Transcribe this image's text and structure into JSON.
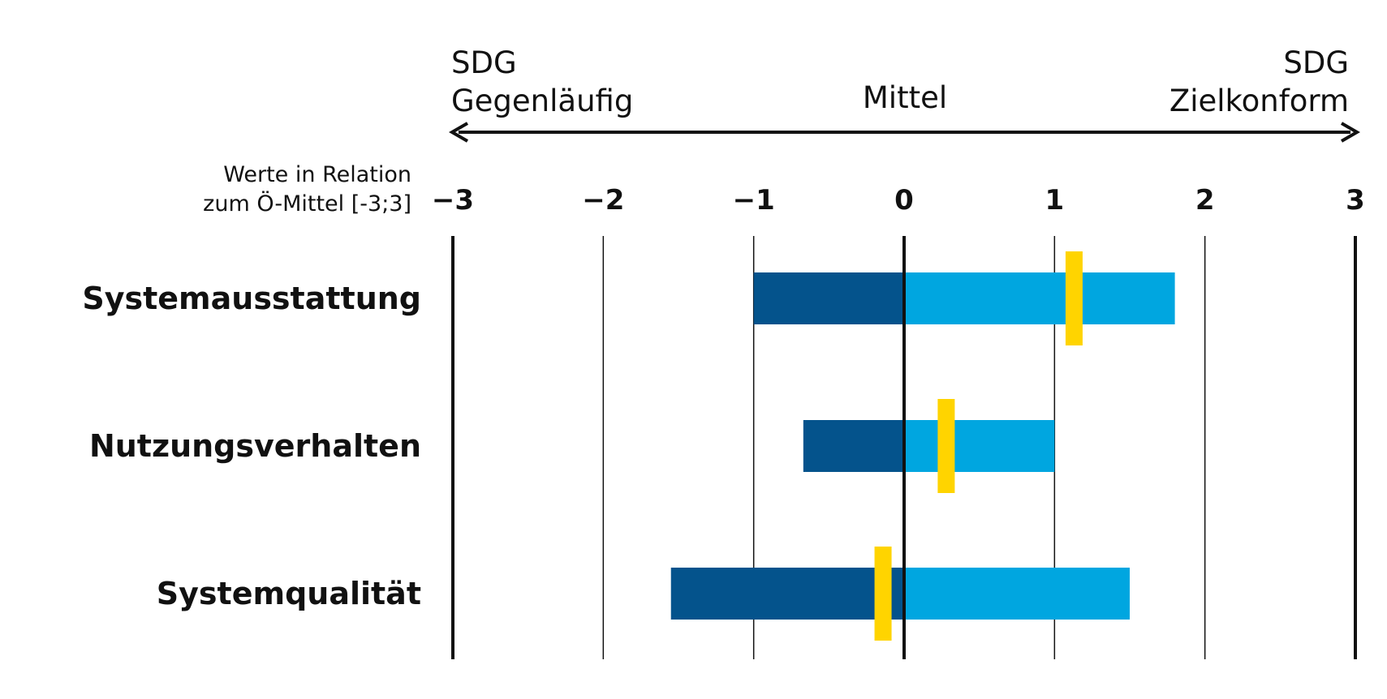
{
  "chart_data": {
    "type": "bar",
    "orientation": "horizontal",
    "header": {
      "left": [
        "SDG",
        "Gegenläufig"
      ],
      "center": "Mittel",
      "right": [
        "SDG",
        "Zielkonform"
      ]
    },
    "units_label": [
      "Werte in Relation",
      "zum Ö-Mittel [-3;3]"
    ],
    "xlim": [
      -3,
      3
    ],
    "ticks": [
      {
        "value": -3,
        "label": "-3"
      },
      {
        "value": -2,
        "label": "-2"
      },
      {
        "value": -1,
        "label": "-1"
      },
      {
        "value": 0,
        "label": "0"
      },
      {
        "value": 1,
        "label": "1"
      },
      {
        "value": 2,
        "label": "2"
      },
      {
        "value": 3,
        "label": "3"
      }
    ],
    "categories": [
      "Systemausstattung",
      "Nutzungsverhalten",
      "Systemqualität"
    ],
    "rows": [
      {
        "min": -1.0,
        "max": 1.8,
        "marker": 1.13
      },
      {
        "min": -0.67,
        "max": 1.0,
        "marker": 0.28
      },
      {
        "min": -1.55,
        "max": 1.5,
        "marker": -0.14
      }
    ],
    "colors": {
      "negative": "#04538c",
      "positive": "#00a6e0",
      "marker": "#ffd400",
      "axis": "#111111"
    }
  }
}
